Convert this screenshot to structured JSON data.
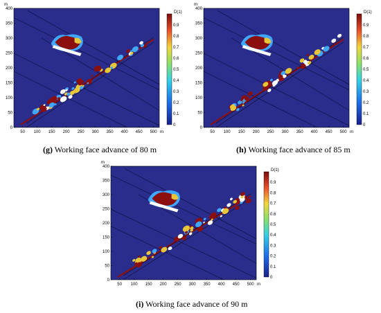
{
  "colors": {
    "background": "#2a2d8c",
    "damage_high": "#8b0f0f",
    "damage_mid": "#e8c63a",
    "damage_low": "#3fa7ff",
    "roof_white": "#ffffff"
  },
  "axes": {
    "x_unit": "m",
    "y_unit": "m",
    "x_ticks": [
      "50",
      "100",
      "150",
      "200",
      "250",
      "300",
      "350",
      "400",
      "450",
      "500"
    ],
    "y_ticks": [
      "0",
      "50",
      "100",
      "150",
      "200",
      "250",
      "300",
      "350",
      "400"
    ]
  },
  "colorbar": {
    "title": "D(1)",
    "ticks": [
      "0.9",
      "0.8",
      "0.7",
      "0.6",
      "0.5",
      "0.4",
      "0.3",
      "0.2",
      "0.1",
      "0"
    ]
  },
  "panels": [
    {
      "letter": "(g)",
      "caption_text": " Working face advance of 80 m"
    },
    {
      "letter": "(h)",
      "caption_text": " Working face advance of 85 m"
    },
    {
      "letter": "(i)",
      "caption_text": " Working face advance of 90 m"
    }
  ]
}
